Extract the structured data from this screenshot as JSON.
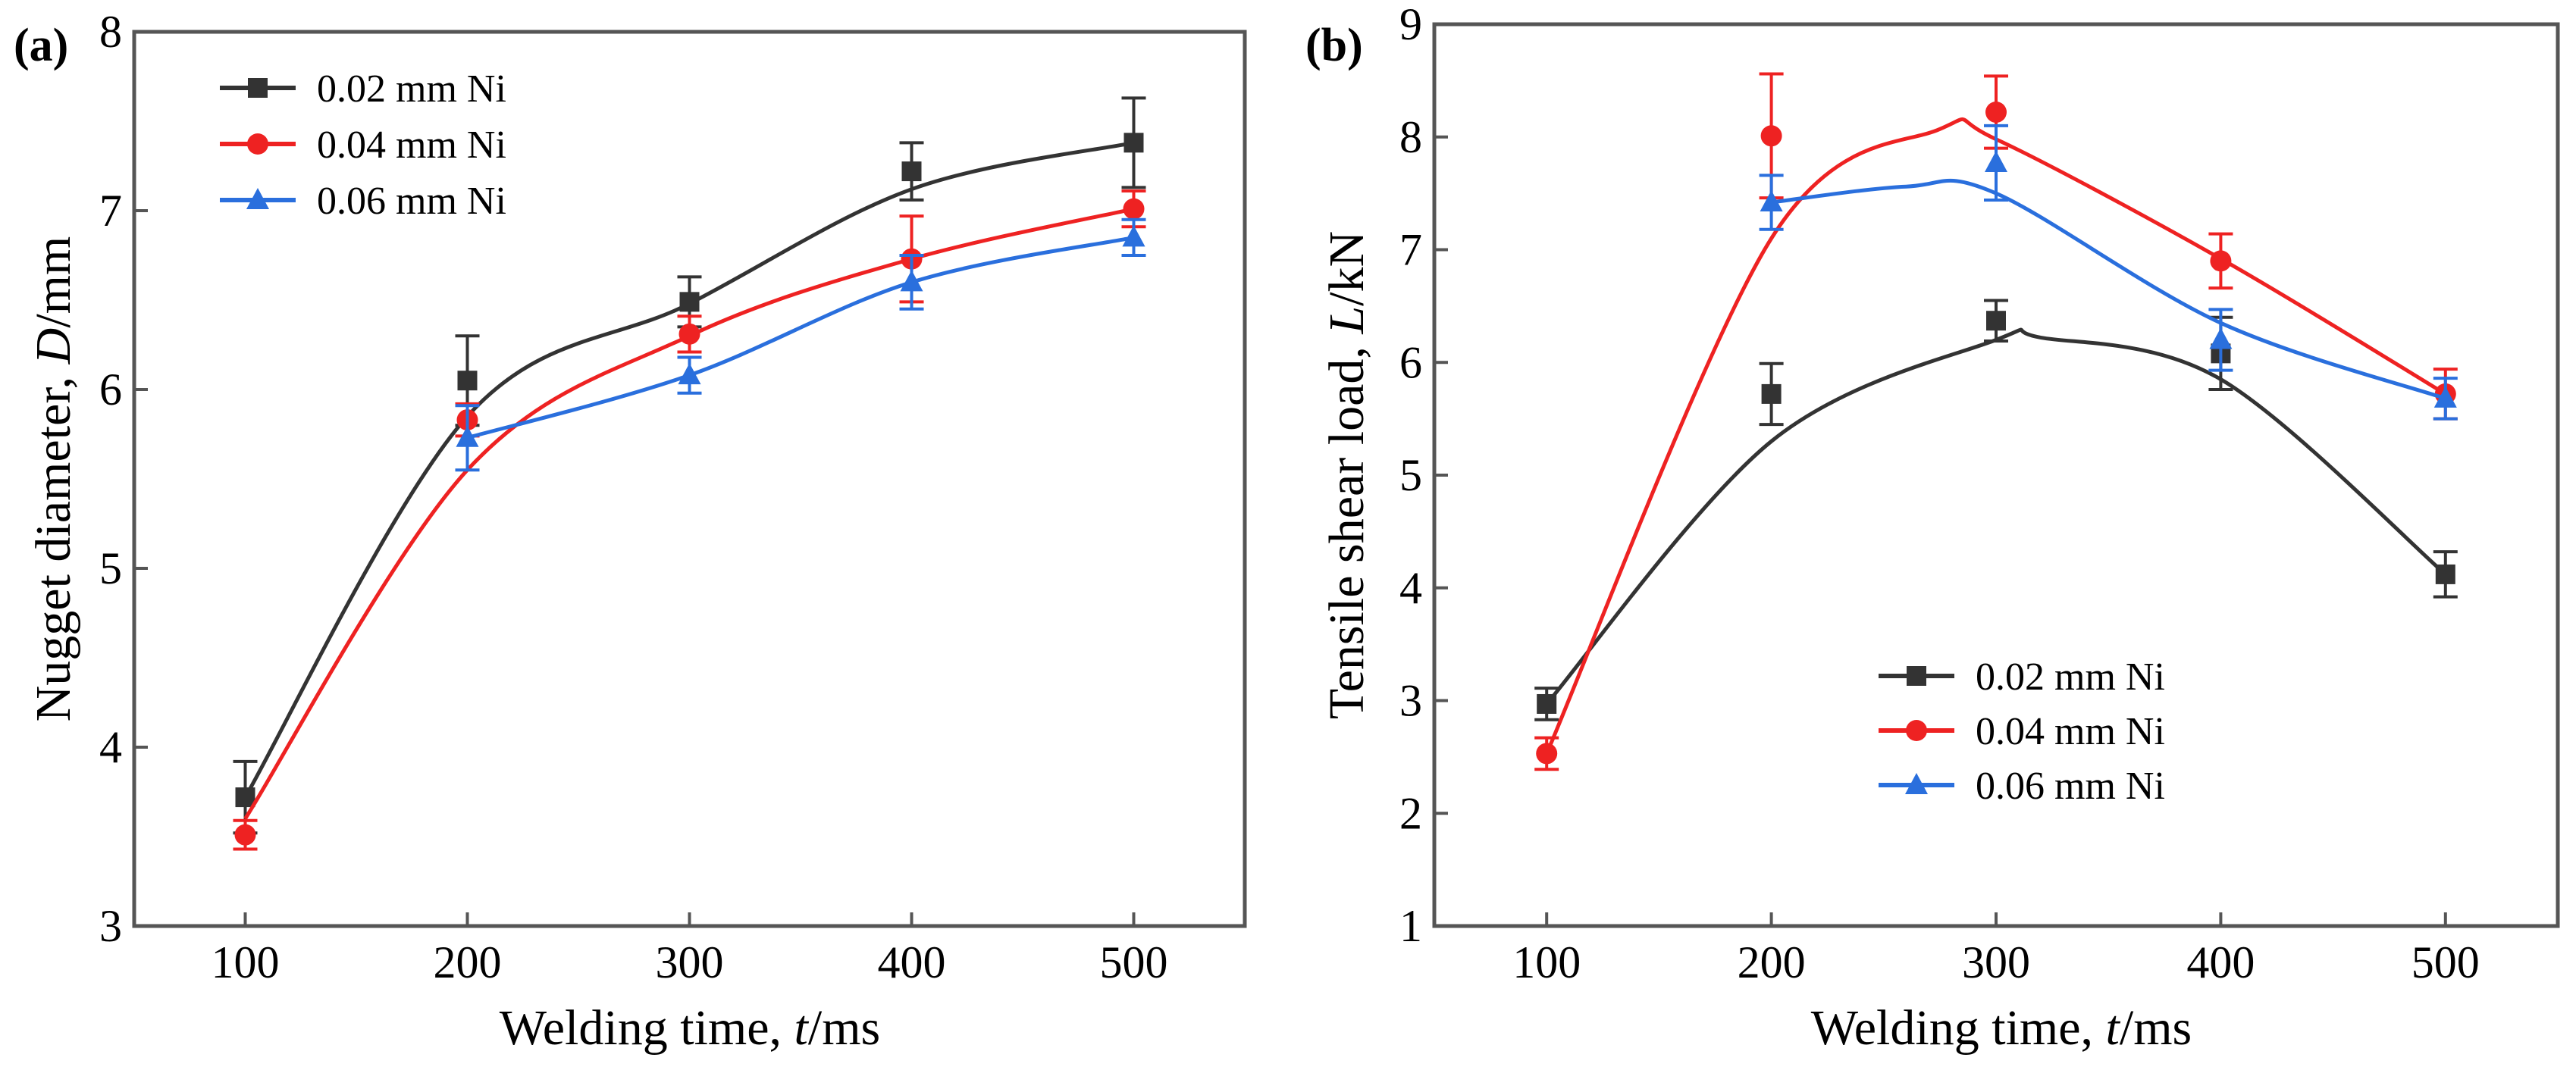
{
  "figure": {
    "colors": {
      "0.02": "#333333",
      "0.04": "#ee2222",
      "0.06": "#2a6fdd",
      "axis": "#555555"
    }
  },
  "chart_data": [
    {
      "type": "line",
      "panel_label": "(a)",
      "x": [
        100,
        200,
        300,
        400,
        500
      ],
      "xlim": [
        50,
        550
      ],
      "ylim": [
        3,
        8
      ],
      "xticks": [
        "100",
        "200",
        "300",
        "400",
        "500"
      ],
      "yticks": [
        "3",
        "4",
        "5",
        "6",
        "7",
        "8"
      ],
      "xlabel_main": "Welding time, ",
      "xlabel_var": "t",
      "xlabel_unit": "/ms",
      "ylabel_main": "Nugget diameter, ",
      "ylabel_var": "D",
      "ylabel_unit": "/mm",
      "legend_position": "top-left",
      "grid": false,
      "series": [
        {
          "name": "0.02 mm Ni",
          "marker": "square",
          "color": "#333333",
          "values": [
            3.72,
            6.05,
            6.49,
            7.22,
            7.38
          ],
          "errors": [
            0.2,
            0.25,
            0.14,
            0.16,
            0.25
          ],
          "smooth": [
            3.72,
            5.85,
            6.48,
            7.12,
            7.38
          ]
        },
        {
          "name": "0.04 mm Ni",
          "marker": "circle",
          "color": "#ee2222",
          "values": [
            3.51,
            5.83,
            6.31,
            6.73,
            7.01
          ],
          "errors": [
            0.08,
            0.09,
            0.1,
            0.24,
            0.1
          ],
          "smooth": [
            3.6,
            5.55,
            6.3,
            6.73,
            7.01
          ]
        },
        {
          "name": "0.06 mm Ni",
          "marker": "triangle",
          "color": "#2a6fdd",
          "values": [
            null,
            5.73,
            6.08,
            6.6,
            6.85
          ],
          "errors": [
            null,
            0.18,
            0.1,
            0.15,
            0.1
          ],
          "smooth": [
            null,
            5.73,
            6.08,
            6.6,
            6.85
          ]
        }
      ]
    },
    {
      "type": "line",
      "panel_label": "(b)",
      "x": [
        100,
        200,
        300,
        400,
        500
      ],
      "xlim": [
        50,
        550
      ],
      "ylim": [
        1,
        9
      ],
      "xticks": [
        "100",
        "200",
        "300",
        "400",
        "500"
      ],
      "yticks": [
        "1",
        "2",
        "3",
        "4",
        "5",
        "6",
        "7",
        "8",
        "9"
      ],
      "xlabel_main": "Welding time, ",
      "xlabel_var": "t",
      "xlabel_unit": "/ms",
      "ylabel_main": "Tensile shear load, ",
      "ylabel_var": "L",
      "ylabel_unit": "/kN",
      "legend_position": "lower-center",
      "grid": false,
      "series": [
        {
          "name": "0.02 mm Ni",
          "marker": "square",
          "color": "#333333",
          "values": [
            2.97,
            5.72,
            6.37,
            6.08,
            4.12
          ],
          "errors": [
            0.14,
            0.27,
            0.18,
            0.32,
            0.2
          ],
          "smooth": [
            2.97,
            5.3,
            6.2,
            5.85,
            4.12
          ],
          "smooth_peak": [
            320,
            6.22
          ]
        },
        {
          "name": "0.04 mm Ni",
          "marker": "circle",
          "color": "#ee2222",
          "values": [
            2.53,
            8.01,
            8.22,
            6.9,
            5.72
          ],
          "errors": [
            0.14,
            0.55,
            0.32,
            0.24,
            0.22
          ],
          "smooth": [
            2.53,
            7.1,
            7.98,
            6.92,
            5.72
          ],
          "smooth_peak": [
            275,
            8.07
          ]
        },
        {
          "name": "0.06 mm Ni",
          "marker": "triangle",
          "color": "#2a6fdd",
          "values": [
            null,
            7.42,
            7.77,
            6.2,
            5.68
          ],
          "errors": [
            null,
            0.24,
            0.33,
            0.27,
            0.18
          ],
          "smooth": [
            null,
            7.42,
            7.5,
            6.35,
            5.68
          ],
          "smooth_peak": [
            260,
            7.56
          ]
        }
      ]
    }
  ]
}
